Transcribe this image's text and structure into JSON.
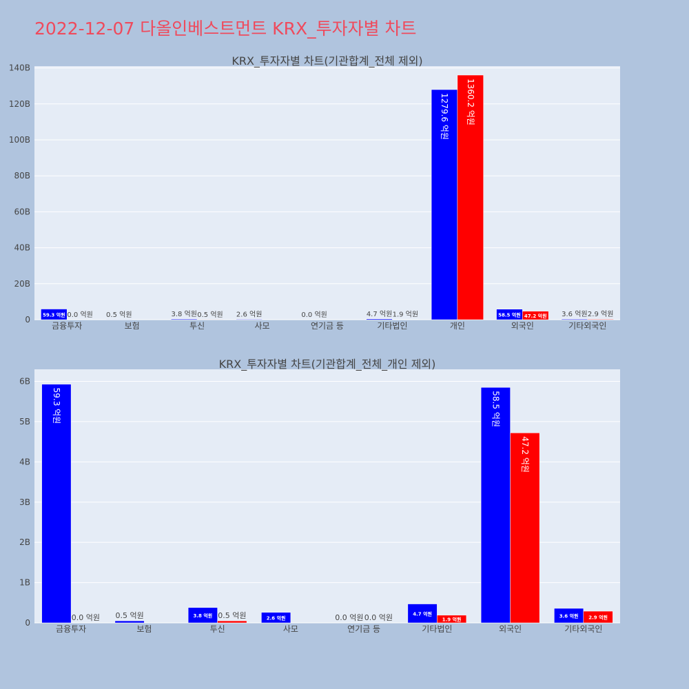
{
  "page": {
    "title": "2022-12-07 다올인베스트먼트 KRX_투자자별 차트"
  },
  "colors": {
    "buy": "#0000ff",
    "sell": "#ff0000",
    "plot_bg": "#e5ecf6",
    "page_bg": "#b0c4de",
    "title": "#ef4a5c"
  },
  "chart_data": [
    {
      "type": "bar",
      "title": "KRX_투자자별 차트(기관합계_전체 제외)",
      "categories": [
        "금융투자",
        "보험",
        "투신",
        "사모",
        "연기금 등",
        "기타법인",
        "개인",
        "외국인",
        "기타외국인"
      ],
      "ylim": [
        0,
        141
      ],
      "yticks": [
        0,
        20,
        40,
        60,
        80,
        100,
        120,
        140
      ],
      "ytick_labels": [
        "0",
        "20B",
        "40B",
        "60B",
        "80B",
        "100B",
        "120B",
        "140B"
      ],
      "grid": true,
      "legend": "none",
      "series": [
        {
          "values": [
            5.93,
            0.05,
            0.38,
            0.26,
            0.0,
            0.47,
            127.96,
            5.85,
            0.36
          ],
          "labels": [
            "59.3 억원",
            "0.5 억원",
            "3.8 억원",
            "2.6 억원",
            "0.0 억원",
            "4.7 억원",
            "1279.6 억원",
            "58.5 억원",
            "3.6 억원"
          ]
        },
        {
          "values": [
            0.0,
            0.0,
            0.05,
            0.0,
            0.0,
            0.19,
            136.02,
            4.72,
            0.29
          ],
          "labels": [
            "0.0 억원",
            "",
            "0.5 억원",
            "",
            "",
            "1.9 억원",
            "1360.2 억원",
            "47.2 억원",
            "2.9 억원"
          ]
        }
      ]
    },
    {
      "type": "bar",
      "title": "KRX_투자자별 차트(기관합계_전체_개인 제외)",
      "categories": [
        "금융투자",
        "보험",
        "투신",
        "사모",
        "연기금 등",
        "기타법인",
        "외국인",
        "기타외국인"
      ],
      "ylim": [
        0,
        6.3
      ],
      "yticks": [
        0,
        1,
        2,
        3,
        4,
        5,
        6
      ],
      "ytick_labels": [
        "0",
        "1B",
        "2B",
        "3B",
        "4B",
        "5B",
        "6B"
      ],
      "grid": true,
      "legend": "none",
      "series": [
        {
          "values": [
            5.93,
            0.05,
            0.38,
            0.26,
            0.0,
            0.47,
            5.85,
            0.36
          ],
          "labels": [
            "59.3 억원",
            "0.5 억원",
            "3.8 억원",
            "2.6 억원",
            "0.0 억원",
            "4.7 억원",
            "58.5 억원",
            "3.6 억원"
          ]
        },
        {
          "values": [
            0.0,
            0.0,
            0.05,
            0.0,
            0.0,
            0.19,
            4.72,
            0.29
          ],
          "labels": [
            "0.0 억원",
            "",
            "0.5 억원",
            "",
            "0.0 억원",
            "1.9 억원",
            "47.2 억원",
            "2.9 억원"
          ]
        }
      ]
    }
  ]
}
